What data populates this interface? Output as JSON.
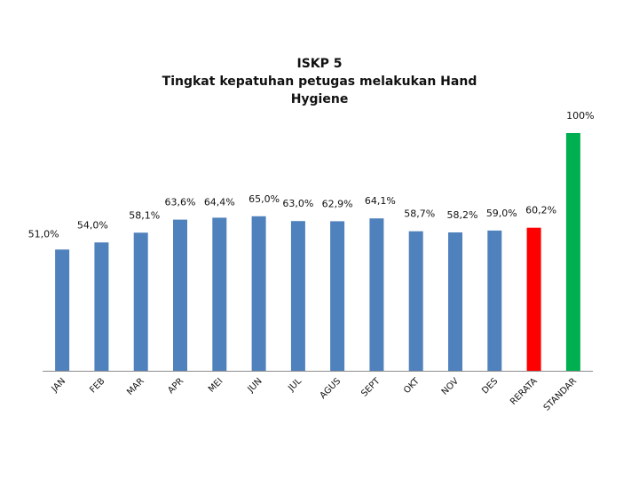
{
  "chart_data": {
    "type": "bar",
    "title_lines": [
      "ISKP 5",
      "Tingkat kepatuhan petugas melakukan Hand",
      "Hygiene"
    ],
    "categories": [
      "JAN",
      "FEB",
      "MAR",
      "APR",
      "MEI",
      "JUN",
      "JUL",
      "AGUS",
      "SEPT",
      "OKT",
      "NOV",
      "DES",
      "RERATA",
      "STANDAR"
    ],
    "values": [
      51.0,
      54.0,
      58.1,
      63.6,
      64.4,
      65.0,
      63.0,
      62.9,
      64.1,
      58.7,
      58.2,
      59.0,
      60.2,
      100
    ],
    "data_labels": [
      "51,0%",
      "54,0%",
      "58,1%",
      "63,6%",
      "64,4%",
      "65,0%",
      "63,0%",
      "62,9%",
      "64,1%",
      "58,7%",
      "58,2%",
      "59,0%",
      "60,2%",
      "100%"
    ],
    "colors": [
      "#4f81bd",
      "#4f81bd",
      "#4f81bd",
      "#4f81bd",
      "#4f81bd",
      "#4f81bd",
      "#4f81bd",
      "#4f81bd",
      "#4f81bd",
      "#4f81bd",
      "#4f81bd",
      "#4f81bd",
      "#ff0000",
      "#00b050"
    ],
    "ylim": [
      0,
      100
    ],
    "xlabel": "",
    "ylabel": "",
    "grid": false,
    "legend": "none"
  }
}
